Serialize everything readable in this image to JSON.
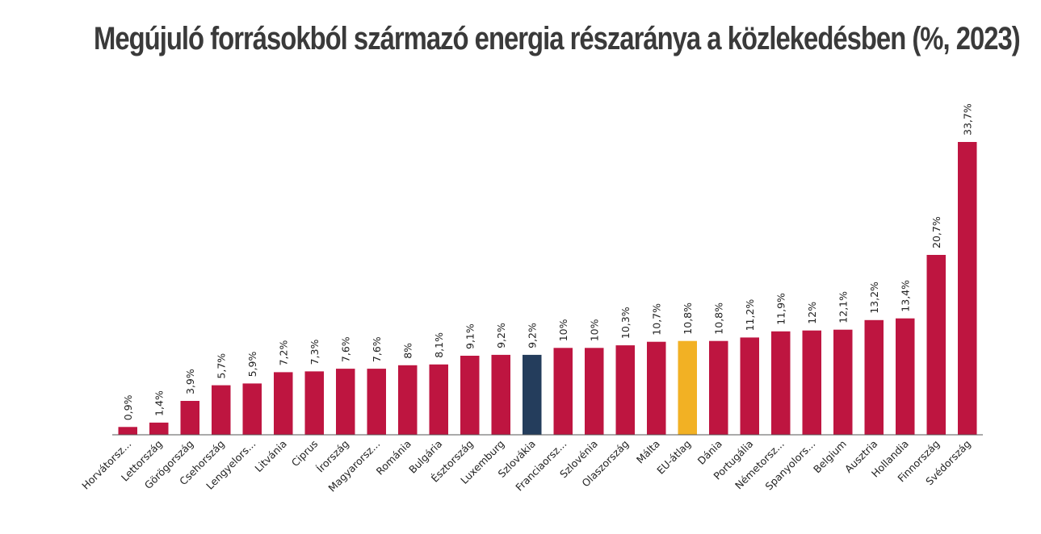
{
  "chart_data": {
    "type": "bar",
    "title": "Megújuló forrásokból származó energia részaránya a közlekedésben (%, 2023)",
    "xlabel": "",
    "ylabel": "",
    "ylim": [
      0,
      33.7
    ],
    "grid": false,
    "legend": "none",
    "categories": [
      "Horvátorsz...",
      "Lettország",
      "Görögország",
      "Csehország",
      "Lengyelors...",
      "Litvánia",
      "Ciprus",
      "Írország",
      "Magyarorsz...",
      "Románia",
      "Bulgária",
      "Észtország",
      "Luxemburg",
      "Szlovákia",
      "Franciaorsz...",
      "Szlovénia",
      "Olaszország",
      "Málta",
      "EU-átlag",
      "Dánia",
      "Portugália",
      "Németorsz...",
      "Spanyolors...",
      "Belgium",
      "Ausztria",
      "Hollandia",
      "Finnország",
      "Svédország"
    ],
    "values": [
      0.9,
      1.4,
      3.9,
      5.7,
      5.9,
      7.2,
      7.3,
      7.6,
      7.6,
      8,
      8.1,
      9.1,
      9.2,
      9.2,
      10,
      10,
      10.3,
      10.7,
      10.8,
      10.8,
      11.2,
      11.9,
      12,
      12.1,
      13.2,
      13.4,
      20.7,
      33.7
    ],
    "data_labels": [
      "0,9%",
      "1,4%",
      "3,9%",
      "5,7%",
      "5,9%",
      "7,2%",
      "7,3%",
      "7,6%",
      "7,6%",
      "8%",
      "8,1%",
      "9,1%",
      "9,2%",
      "9,2%",
      "10%",
      "10%",
      "10,3%",
      "10,7%",
      "10,8%",
      "10,8%",
      "11,2%",
      "11,9%",
      "12%",
      "12,1%",
      "13,2%",
      "13,4%",
      "20,7%",
      "33,7%"
    ],
    "colors": {
      "default": "#be1540",
      "highlight": {
        "Szlovákia": "#243d5c",
        "EU-átlag": "#f2b124"
      },
      "title": "#3a3a3a",
      "axis": "#555555"
    }
  }
}
